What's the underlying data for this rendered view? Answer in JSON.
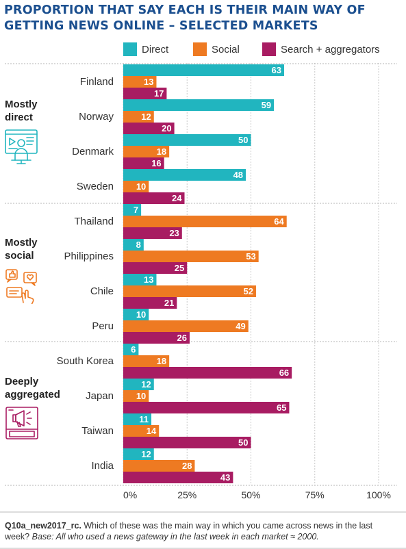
{
  "title_line1": "PROPORTION THAT SAY EACH IS THEIR MAIN WAY OF",
  "title_line2": "GETTING NEWS ONLINE – SELECTED MARKETS",
  "legend": [
    {
      "label": "Direct",
      "color": "#21b5bf"
    },
    {
      "label": "Social",
      "color": "#ee7a22"
    },
    {
      "label": "Search + aggregators",
      "color": "#a81c62"
    }
  ],
  "groups": [
    {
      "label_line1": "Mostly",
      "label_line2": "direct",
      "icon": "video-presenter-icon",
      "icon_color": "#21b5bf"
    },
    {
      "label_line1": "Mostly",
      "label_line2": "social",
      "icon": "social-reactions-icon",
      "icon_color": "#ee7a22"
    },
    {
      "label_line1": "Deeply",
      "label_line2": "aggregated",
      "icon": "news-feed-megaphone-icon",
      "icon_color": "#a81c62"
    }
  ],
  "chart_data": {
    "type": "bar",
    "orientation": "horizontal",
    "categories": [
      "Finland",
      "Norway",
      "Denmark",
      "Sweden",
      "Thailand",
      "Philippines",
      "Chile",
      "Peru",
      "South Korea",
      "Japan",
      "Taiwan",
      "India"
    ],
    "series": [
      {
        "name": "Direct",
        "color": "#21b5bf",
        "values": [
          63,
          59,
          50,
          48,
          7,
          8,
          13,
          10,
          6,
          12,
          11,
          12
        ]
      },
      {
        "name": "Social",
        "color": "#ee7a22",
        "values": [
          13,
          12,
          18,
          10,
          64,
          53,
          52,
          49,
          18,
          10,
          14,
          28
        ]
      },
      {
        "name": "Search + aggregators",
        "color": "#a81c62",
        "values": [
          17,
          20,
          16,
          24,
          23,
          25,
          21,
          26,
          66,
          65,
          50,
          43
        ]
      }
    ],
    "xlim": [
      0,
      100
    ],
    "xticks": [
      "0%",
      "25%",
      "50%",
      "75%",
      "100%"
    ],
    "grid": true
  },
  "footnote": {
    "code": "Q10a_new2017_rc.",
    "question": " Which of these was the main way in which you came across news in the last week?",
    "base": " Base: All who used a news gateway in the last week in each market ≈ 2000."
  }
}
